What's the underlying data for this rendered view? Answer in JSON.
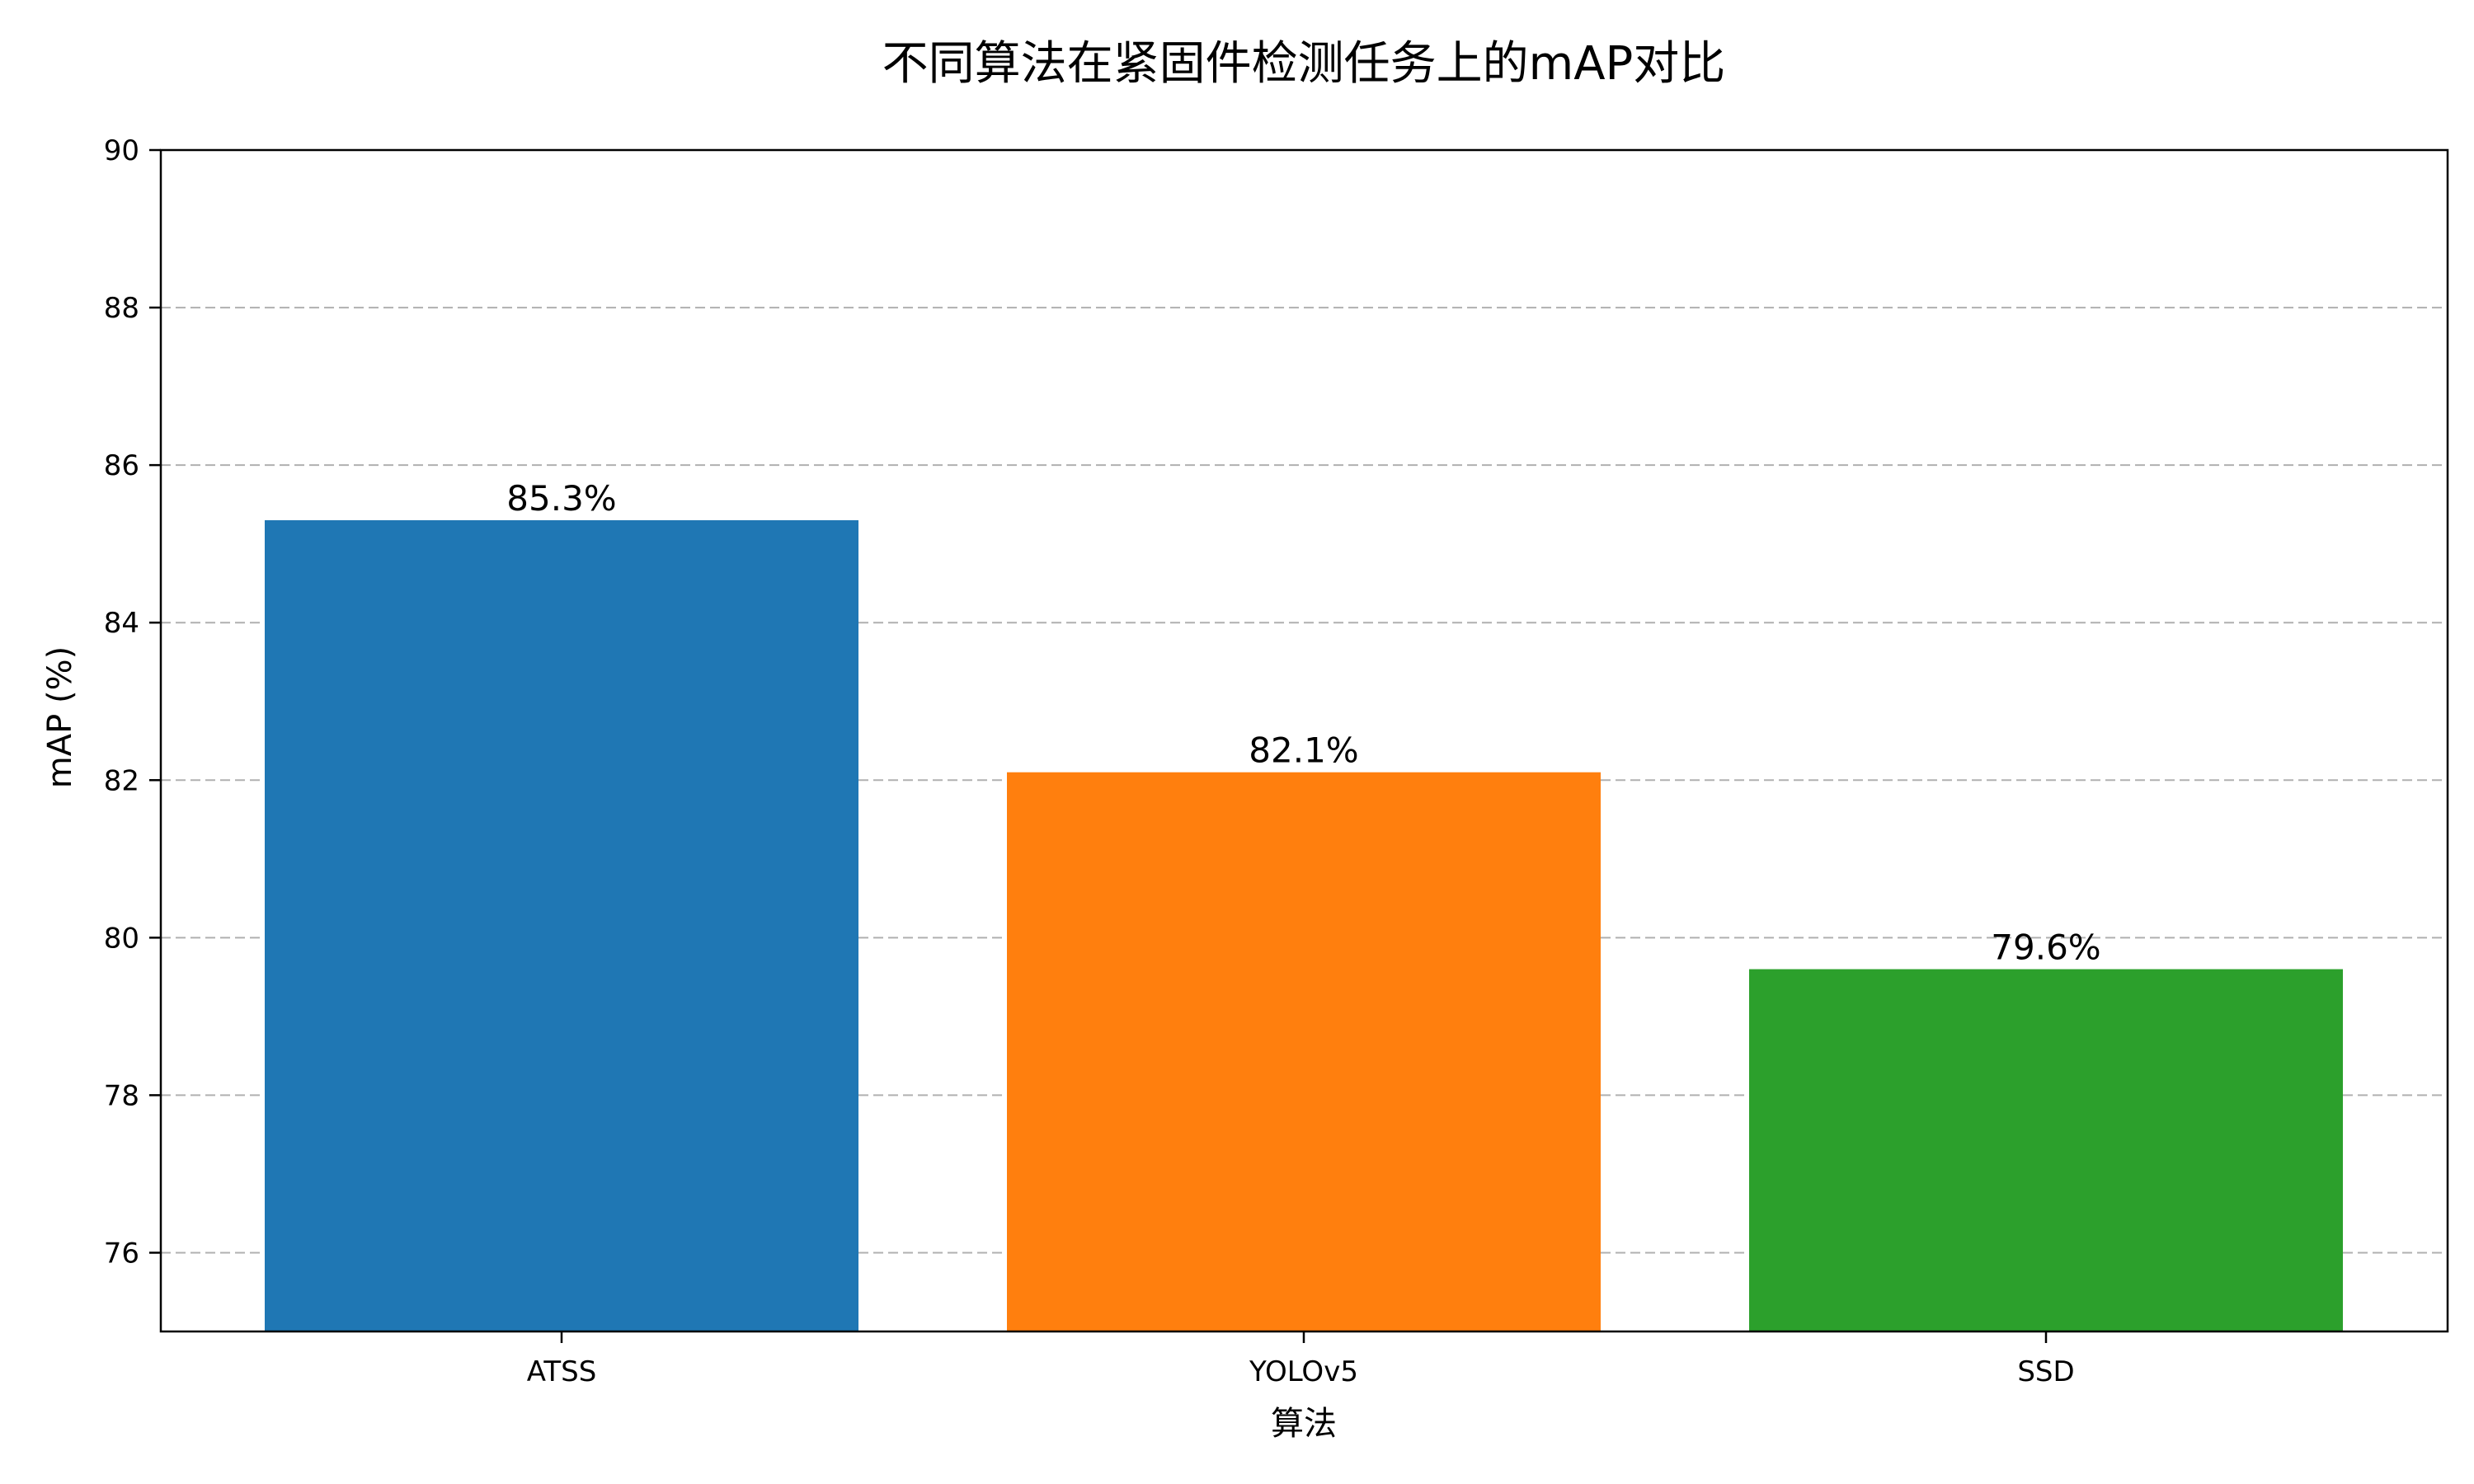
{
  "chart_data": {
    "type": "bar",
    "title": "不同算法在紧固件检测任务上的mAP对比",
    "xlabel": "算法",
    "ylabel": "mAP (%)",
    "categories": [
      "ATSS",
      "YOLOv5",
      "SSD"
    ],
    "values": [
      85.3,
      82.1,
      79.6
    ],
    "value_labels": [
      "85.3%",
      "82.1%",
      "79.6%"
    ],
    "colors": [
      "#1f77b4",
      "#ff7f0e",
      "#2ca02c"
    ],
    "ylim": [
      75,
      90
    ],
    "yticks": [
      76,
      78,
      80,
      82,
      84,
      86,
      88,
      90
    ],
    "grid": "horizontal dashed",
    "legend": "none"
  }
}
